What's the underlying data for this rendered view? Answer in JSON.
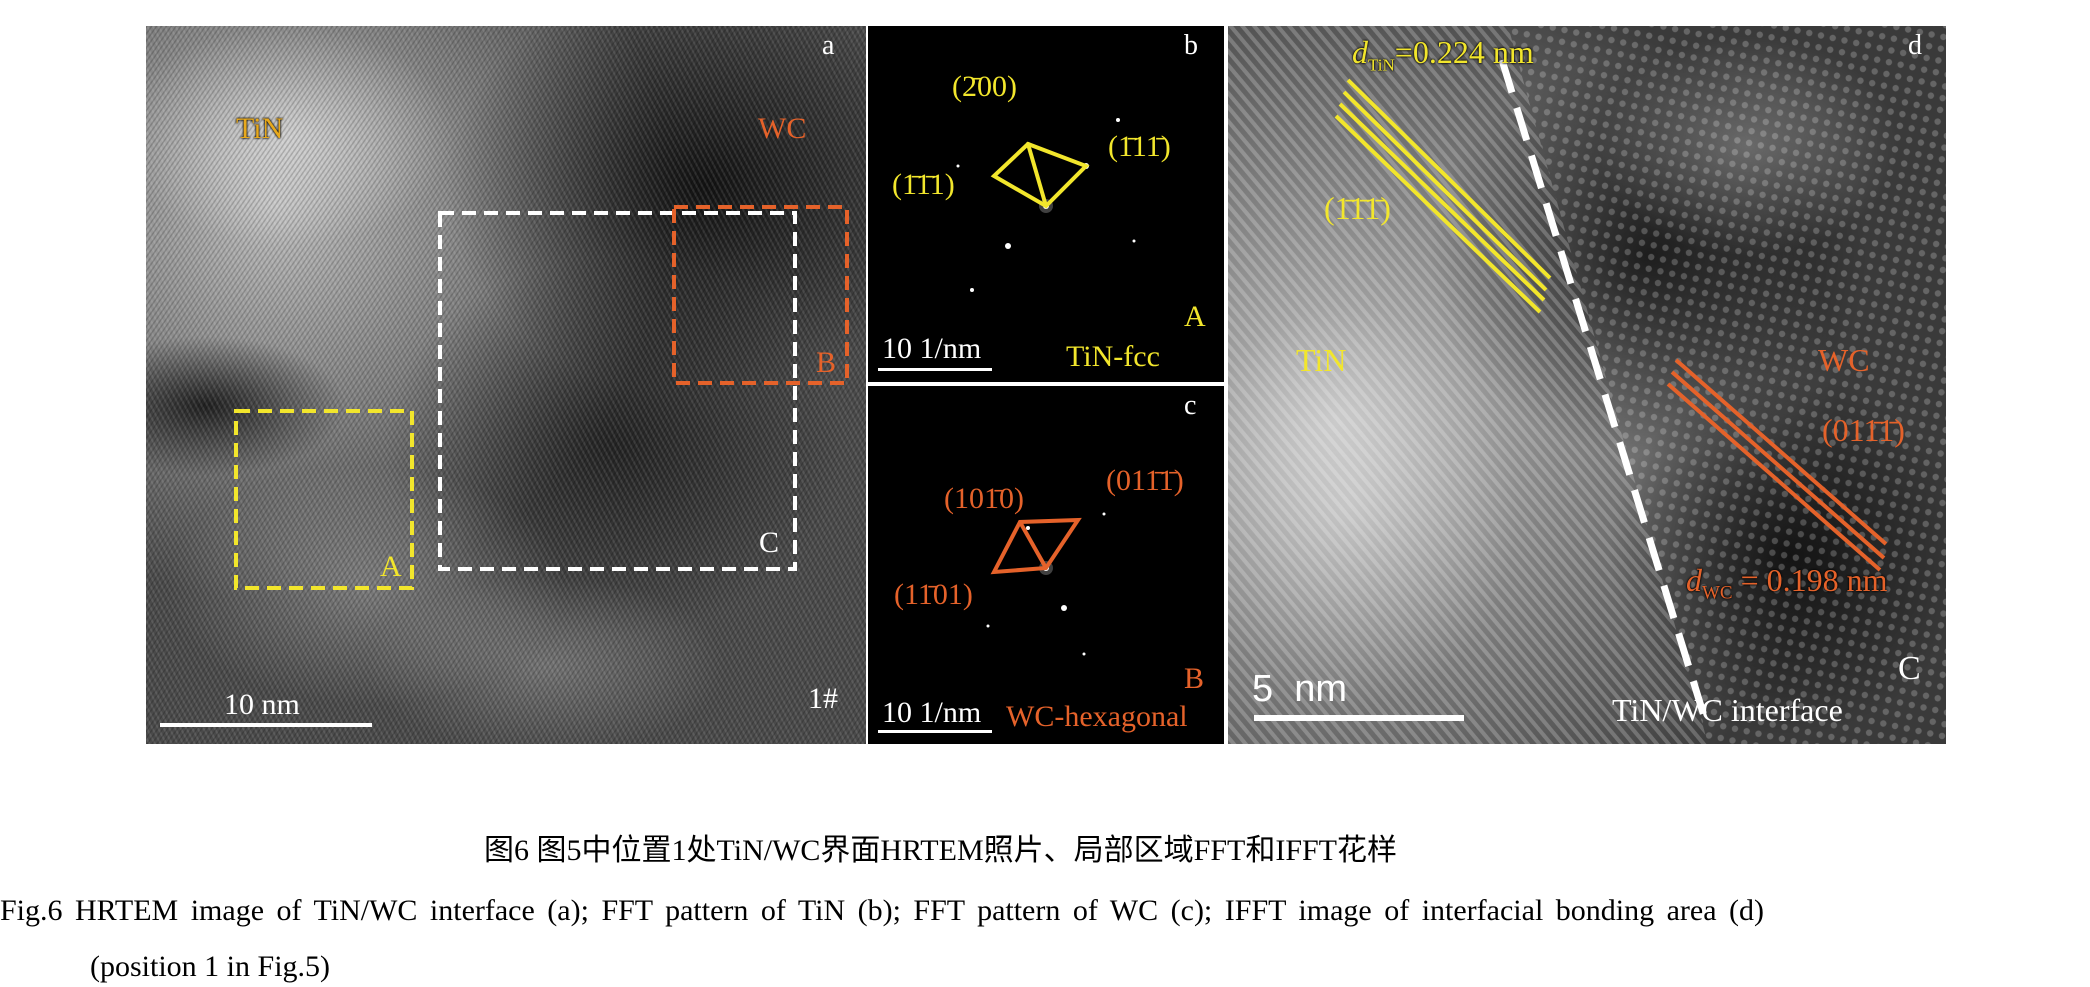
{
  "panel_a": {
    "letter": "a",
    "tin_label": "TiN",
    "wc_label": "WC",
    "box_a": "A",
    "box_b": "B",
    "box_c": "C",
    "scale": "10 nm",
    "position": "1#"
  },
  "panel_b": {
    "letter": "b",
    "hkl_top": "(2̄00)",
    "hkl_left": "(1̄1̄1)",
    "hkl_right": "(1̄11̄)",
    "region": "A",
    "phase": "TiN-fcc",
    "scale": "10 1/nm"
  },
  "panel_c": {
    "letter": "c",
    "hkl_top": "(101̄0)",
    "hkl_right": "(011̄1̄)",
    "hkl_left": "(11̄01)",
    "region": "B",
    "phase": "WC-hexagonal",
    "scale": "10 1/nm"
  },
  "panel_d": {
    "letter": "d",
    "d_tin_d": "d",
    "d_tin_sub": "TiN",
    "d_tin_val": "=0.224 nm",
    "hkl_tin": "(1̄1̄1̄)",
    "tin_label": "TiN",
    "wc_label": "WC",
    "hkl_wc": "(011̄1̄)",
    "d_wc_d": "d",
    "d_wc_sub": "WC",
    "d_wc_val": " = 0.198 nm",
    "region": "C",
    "scale": "5  nm",
    "interface": "TiN/WC interface"
  },
  "caption": {
    "cn": "图6  图5中位置1处TiN/WC界面HRTEM照片、局部区域FFT和IFFT花样",
    "en_line1": "Fig.6  HRTEM image of TiN/WC interface (a); FFT pattern of TiN (b); FFT pattern of WC (c); IFFT image of interfacial bonding area (d)",
    "en_line2": "(position 1 in Fig.5)"
  },
  "colors": {
    "yellow": "#f2e62c",
    "orange": "#e5622a",
    "white": "#ffffff",
    "tin_label": "#e8a91c"
  }
}
